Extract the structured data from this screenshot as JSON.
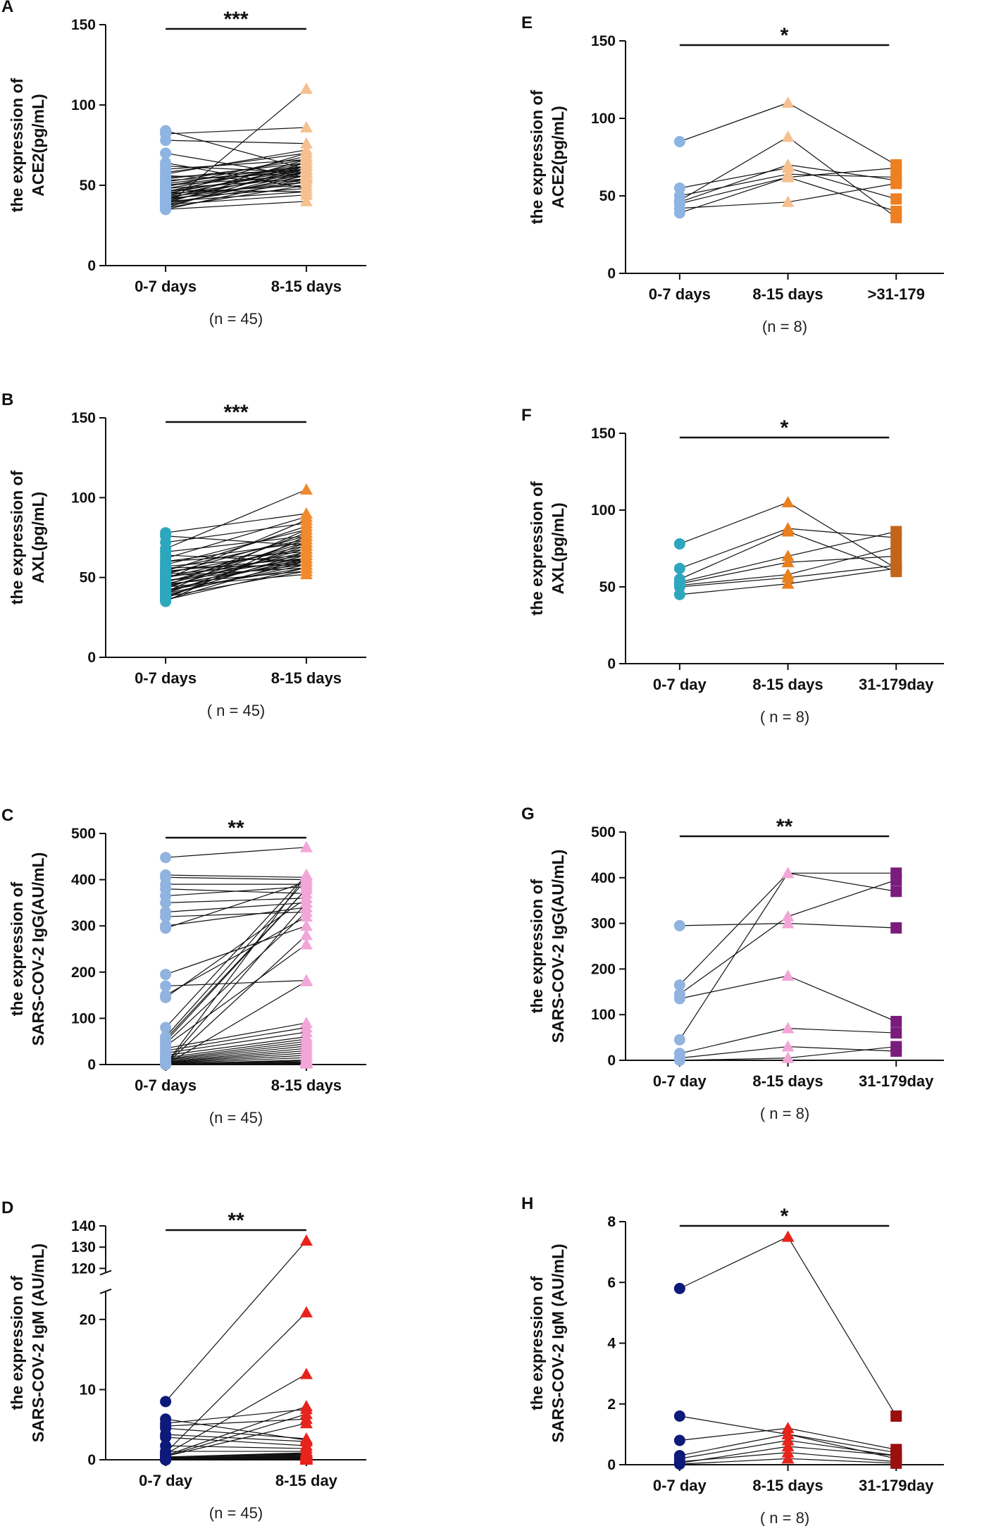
{
  "chart_data": [
    {
      "panel": "A",
      "type": "scatter",
      "subtype": "paired-dot",
      "ylabel": [
        "the expression of",
        "ACE2(pg/mL)"
      ],
      "categories": [
        "0-7 days",
        "8-15 days"
      ],
      "colors": [
        "#8db4e2",
        "#f5c08f"
      ],
      "markers": [
        "circle",
        "triangle"
      ],
      "n_label": "(n = 45)",
      "significance": "***",
      "yticks": [
        0,
        50,
        100,
        150
      ],
      "ylim": [
        0,
        150
      ],
      "paired_values": [
        [
          84,
          60
        ],
        [
          82,
          86
        ],
        [
          78,
          76
        ],
        [
          70,
          55
        ],
        [
          64,
          48
        ],
        [
          62,
          58
        ],
        [
          60,
          66
        ],
        [
          58,
          70
        ],
        [
          57,
          72
        ],
        [
          56,
          52
        ],
        [
          55,
          60
        ],
        [
          54,
          64
        ],
        [
          53,
          58
        ],
        [
          52,
          66
        ],
        [
          51,
          62
        ],
        [
          50,
          56
        ],
        [
          50,
          60
        ],
        [
          49,
          68
        ],
        [
          48,
          54
        ],
        [
          48,
          62
        ],
        [
          47,
          46
        ],
        [
          46,
          58
        ],
        [
          46,
          64
        ],
        [
          45,
          50
        ],
        [
          45,
          60
        ],
        [
          44,
          56
        ],
        [
          44,
          70
        ],
        [
          43,
          52
        ],
        [
          43,
          62
        ],
        [
          42,
          48
        ],
        [
          42,
          58
        ],
        [
          41,
          66
        ],
        [
          41,
          54
        ],
        [
          40,
          60
        ],
        [
          40,
          46
        ],
        [
          39,
          52
        ],
        [
          39,
          64
        ],
        [
          38,
          44
        ],
        [
          38,
          56
        ],
        [
          37,
          58
        ],
        [
          37,
          110
        ],
        [
          36,
          50
        ],
        [
          36,
          62
        ],
        [
          35,
          40
        ],
        [
          35,
          54
        ]
      ]
    },
    {
      "panel": "B",
      "type": "scatter",
      "subtype": "paired-dot",
      "ylabel": [
        "the expression of",
        "AXL(pg/mL)"
      ],
      "categories": [
        "0-7 days",
        "8-15 days"
      ],
      "colors": [
        "#2da7bd",
        "#ef8b2c"
      ],
      "markers": [
        "circle",
        "triangle"
      ],
      "n_label": "( n = 45)",
      "significance": "***",
      "yticks": [
        0,
        50,
        100,
        150
      ],
      "ylim": [
        0,
        150
      ],
      "paired_values": [
        [
          78,
          90
        ],
        [
          76,
          70
        ],
        [
          72,
          84
        ],
        [
          68,
          105
        ],
        [
          66,
          76
        ],
        [
          64,
          60
        ],
        [
          62,
          88
        ],
        [
          60,
          72
        ],
        [
          60,
          66
        ],
        [
          58,
          80
        ],
        [
          57,
          64
        ],
        [
          56,
          58
        ],
        [
          55,
          74
        ],
        [
          54,
          62
        ],
        [
          54,
          82
        ],
        [
          53,
          68
        ],
        [
          52,
          60
        ],
        [
          52,
          76
        ],
        [
          51,
          56
        ],
        [
          50,
          70
        ],
        [
          50,
          64
        ],
        [
          49,
          86
        ],
        [
          48,
          62
        ],
        [
          48,
          58
        ],
        [
          47,
          72
        ],
        [
          46,
          66
        ],
        [
          46,
          54
        ],
        [
          45,
          78
        ],
        [
          45,
          60
        ],
        [
          44,
          68
        ],
        [
          44,
          52
        ],
        [
          43,
          74
        ],
        [
          42,
          62
        ],
        [
          42,
          56
        ],
        [
          41,
          80
        ],
        [
          41,
          64
        ],
        [
          40,
          58
        ],
        [
          40,
          70
        ],
        [
          39,
          60
        ],
        [
          38,
          66
        ],
        [
          38,
          54
        ],
        [
          37,
          72
        ],
        [
          36,
          62
        ],
        [
          36,
          56
        ],
        [
          35,
          76
        ]
      ]
    },
    {
      "panel": "C",
      "type": "scatter",
      "subtype": "paired-dot",
      "ylabel": [
        "the expression of",
        "SARS-COV-2 IgG(AU/mL)"
      ],
      "categories": [
        "0-7 days",
        "8-15 days"
      ],
      "colors": [
        "#91b3df",
        "#f2a6d8"
      ],
      "markers": [
        "circle",
        "triangle"
      ],
      "n_label": "(n = 45)",
      "significance": "**",
      "yticks": [
        0,
        100,
        200,
        300,
        400,
        500
      ],
      "ylim": [
        0,
        500
      ],
      "paired_values": [
        [
          448,
          470
        ],
        [
          410,
          405
        ],
        [
          405,
          400
        ],
        [
          390,
          390
        ],
        [
          380,
          370
        ],
        [
          365,
          385
        ],
        [
          350,
          360
        ],
        [
          330,
          350
        ],
        [
          320,
          330
        ],
        [
          300,
          340
        ],
        [
          295,
          395
        ],
        [
          195,
          300
        ],
        [
          170,
          182
        ],
        [
          150,
          320
        ],
        [
          145,
          360
        ],
        [
          80,
          410
        ],
        [
          60,
          400
        ],
        [
          55,
          380
        ],
        [
          50,
          380
        ],
        [
          45,
          330
        ],
        [
          40,
          260
        ],
        [
          35,
          90
        ],
        [
          30,
          80
        ],
        [
          25,
          70
        ],
        [
          20,
          60
        ],
        [
          15,
          55
        ],
        [
          12,
          50
        ],
        [
          10,
          45
        ],
        [
          8,
          40
        ],
        [
          6,
          35
        ],
        [
          5,
          30
        ],
        [
          4,
          25
        ],
        [
          3,
          20
        ],
        [
          2,
          15
        ],
        [
          1,
          10
        ],
        [
          1,
          8
        ],
        [
          0,
          6
        ],
        [
          0,
          5
        ],
        [
          0,
          4
        ],
        [
          0,
          3
        ],
        [
          0,
          2
        ],
        [
          0,
          410
        ],
        [
          0,
          350
        ],
        [
          0,
          280
        ],
        [
          0,
          180
        ]
      ]
    },
    {
      "panel": "D",
      "type": "scatter",
      "subtype": "paired-dot",
      "ylabel": [
        "the expression of",
        "SARS-COV-2 IgM (AU/mL)"
      ],
      "categories": [
        "0-7 day",
        "8-15 day"
      ],
      "colors": [
        "#0d1a7a",
        "#e8231c"
      ],
      "markers": [
        "circle",
        "triangle"
      ],
      "n_label": "(n = 45)",
      "significance": "**",
      "yticks": [
        0,
        10,
        20,
        120,
        130,
        140
      ],
      "ylim": [
        0,
        140
      ],
      "axis_break": [
        24,
        118
      ],
      "paired_values": [
        [
          8.3,
          133
        ],
        [
          5.8,
          2.8
        ],
        [
          5.2,
          7.2
        ],
        [
          4.8,
          5.8
        ],
        [
          4.5,
          3.0
        ],
        [
          3.6,
          2.6
        ],
        [
          3.2,
          2.0
        ],
        [
          2.0,
          1.6
        ],
        [
          1.2,
          1.2
        ],
        [
          1.0,
          21
        ],
        [
          0.8,
          12.2
        ],
        [
          0.6,
          7.6
        ],
        [
          0.5,
          6.5
        ],
        [
          0.5,
          5.2
        ],
        [
          0.4,
          1.0
        ],
        [
          0.4,
          0.9
        ],
        [
          0.3,
          0.8
        ],
        [
          0.3,
          0.7
        ],
        [
          0.2,
          0.6
        ],
        [
          0.2,
          0.5
        ],
        [
          0.2,
          0.5
        ],
        [
          0.1,
          0.4
        ],
        [
          0.1,
          0.4
        ],
        [
          0.1,
          0.3
        ],
        [
          0.1,
          0.3
        ],
        [
          0.1,
          0.2
        ],
        [
          0,
          0.2
        ],
        [
          0,
          0.2
        ],
        [
          0,
          0.1
        ],
        [
          0,
          0.1
        ],
        [
          0,
          0.1
        ],
        [
          0,
          0.1
        ],
        [
          0,
          0
        ],
        [
          0,
          0
        ],
        [
          0,
          0
        ],
        [
          0,
          0
        ],
        [
          0,
          0
        ],
        [
          0,
          0
        ],
        [
          0,
          0
        ],
        [
          0,
          0
        ],
        [
          0,
          0
        ],
        [
          0,
          0
        ],
        [
          0,
          0
        ],
        [
          0,
          0
        ],
        [
          0,
          0
        ]
      ]
    },
    {
      "panel": "E",
      "type": "scatter",
      "subtype": "paired-dot",
      "ylabel": [
        "the expression of",
        "ACE2(pg/mL)"
      ],
      "categories": [
        "0-7 days",
        "8-15 days",
        ">31-179"
      ],
      "colors": [
        "#8db4e2",
        "#f5c08f",
        "#ee7f22"
      ],
      "markers": [
        "circle",
        "triangle",
        "square"
      ],
      "n_label": "(n = 8)",
      "significance": "*",
      "yticks": [
        0,
        50,
        100,
        150
      ],
      "ylim": [
        0,
        150
      ],
      "paired_values": [
        [
          85,
          110,
          70
        ],
        [
          55,
          68,
          48
        ],
        [
          50,
          64,
          62
        ],
        [
          47,
          88,
          36
        ],
        [
          46,
          70,
          60
        ],
        [
          45,
          62,
          68
        ],
        [
          42,
          46,
          58
        ],
        [
          39,
          62,
          40
        ]
      ]
    },
    {
      "panel": "F",
      "type": "scatter",
      "subtype": "paired-dot",
      "ylabel": [
        "the expression of",
        "AXL(pg/mL)"
      ],
      "categories": [
        "0-7 day",
        "8-15 days",
        "31-179day"
      ],
      "colors": [
        "#2da7bd",
        "#e8801e",
        "#c2651a"
      ],
      "markers": [
        "circle",
        "triangle",
        "square"
      ],
      "n_label": "( n = 8)",
      "significance": "*",
      "yticks": [
        0,
        50,
        100,
        150
      ],
      "ylim": [
        0,
        150
      ],
      "paired_values": [
        [
          78,
          105,
          62
        ],
        [
          62,
          88,
          82
        ],
        [
          55,
          86,
          60
        ],
        [
          53,
          70,
          86
        ],
        [
          52,
          66,
          70
        ],
        [
          51,
          58,
          76
        ],
        [
          50,
          56,
          64
        ],
        [
          45,
          52,
          62
        ]
      ]
    },
    {
      "panel": "G",
      "type": "scatter",
      "subtype": "paired-dot",
      "ylabel": [
        "the expression of",
        "SARS-COV-2 IgG(AU/mL)"
      ],
      "categories": [
        "0-7 day",
        "8-15 days",
        "31-179day"
      ],
      "colors": [
        "#91b3df",
        "#f2a6d8",
        "#7b1c7d"
      ],
      "markers": [
        "circle",
        "triangle",
        "square"
      ],
      "n_label": "( n = 8)",
      "significance": "**",
      "yticks": [
        0,
        100,
        200,
        300,
        400,
        500
      ],
      "ylim": [
        0,
        500
      ],
      "paired_values": [
        [
          295,
          300,
          290
        ],
        [
          165,
          410,
          410
        ],
        [
          145,
          315,
          395
        ],
        [
          135,
          185,
          85
        ],
        [
          45,
          410,
          370
        ],
        [
          15,
          70,
          60
        ],
        [
          5,
          30,
          20
        ],
        [
          0,
          5,
          30
        ]
      ]
    },
    {
      "panel": "H",
      "type": "scatter",
      "subtype": "paired-dot",
      "ylabel": [
        "the expression of",
        "SARS-COV-2 IgM (AU/mL)"
      ],
      "categories": [
        "0-7 day",
        "8-15 days",
        "31-179day"
      ],
      "colors": [
        "#0d1a7a",
        "#e8231c",
        "#9b0f0f"
      ],
      "markers": [
        "circle",
        "triangle",
        "square"
      ],
      "n_label": "( n = 8)",
      "significance": "*",
      "yticks": [
        0,
        2,
        4,
        6,
        8
      ],
      "ylim": [
        0,
        8
      ],
      "paired_values": [
        [
          5.8,
          7.5,
          1.6
        ],
        [
          1.6,
          1.0,
          0.4
        ],
        [
          0.8,
          1.2,
          0.5
        ],
        [
          0.3,
          1.0,
          0.2
        ],
        [
          0.2,
          0.8,
          0.3
        ],
        [
          0.1,
          0.4,
          0.1
        ],
        [
          0.05,
          0.6,
          0.3
        ],
        [
          0.02,
          0.2,
          0.05
        ]
      ]
    }
  ]
}
